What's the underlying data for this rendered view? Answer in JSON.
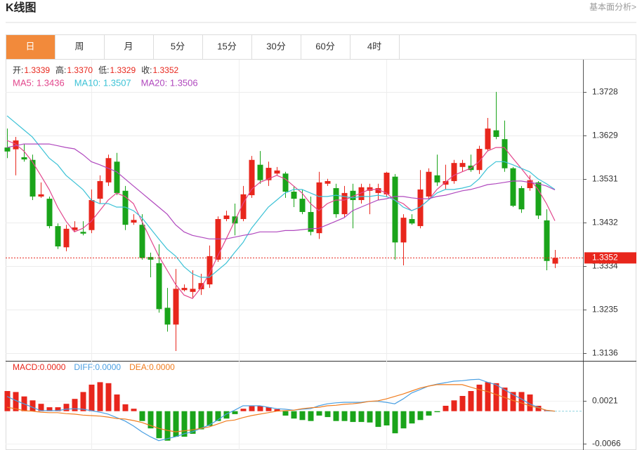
{
  "header": {
    "title": "K线图",
    "link": "基本面分析>"
  },
  "tabs": [
    "日",
    "周",
    "月",
    "5分",
    "15分",
    "30分",
    "60分",
    "4时"
  ],
  "active_tab": 0,
  "info": [
    {
      "label": "开:",
      "value": "1.3339"
    },
    {
      "label": "高:",
      "value": "1.3370"
    },
    {
      "label": "低:",
      "value": "1.3329"
    },
    {
      "label": "收:",
      "value": "1.3352"
    }
  ],
  "chart_data": [
    {
      "type": "candlestick",
      "up_color": "#e8261c",
      "down_color": "#1aa41a",
      "open": [
        1.3602,
        1.3598,
        1.358,
        1.3574,
        1.3491,
        1.3486,
        1.3424,
        1.3376,
        1.3415,
        1.3411,
        1.3415,
        1.3486,
        1.3523,
        1.357,
        1.3504,
        1.3432,
        1.3427,
        1.3354,
        1.334,
        1.3239,
        1.3201,
        1.3279,
        1.3275,
        1.3281,
        1.3292,
        1.3348,
        1.344,
        1.3446,
        1.344,
        1.3494,
        1.3563,
        1.3528,
        1.3543,
        1.3543,
        1.3502,
        1.3486,
        1.3456,
        1.3408,
        1.352,
        1.351,
        1.3451,
        1.3504,
        1.3483,
        1.3504,
        1.3499,
        1.3496,
        1.3536,
        1.3387,
        1.344,
        1.3424,
        1.3491,
        1.3539,
        1.3518,
        1.3526,
        1.3558,
        1.3561,
        1.3551,
        1.3598,
        1.3641,
        1.3621,
        1.3555,
        1.351,
        1.351,
        1.3523,
        1.3437,
        1.3339
      ],
      "high": [
        1.3645,
        1.3626,
        1.361,
        1.3586,
        1.3523,
        1.3491,
        1.343,
        1.3427,
        1.3435,
        1.3435,
        1.3507,
        1.3539,
        1.3586,
        1.359,
        1.3515,
        1.3451,
        1.3451,
        1.3364,
        1.3383,
        1.3284,
        1.3327,
        1.3292,
        1.3324,
        1.3316,
        1.338,
        1.3446,
        1.3459,
        1.3475,
        1.3515,
        1.3583,
        1.3594,
        1.357,
        1.3558,
        1.3547,
        1.3515,
        1.3507,
        1.3491,
        1.3547,
        1.3531,
        1.352,
        1.3515,
        1.352,
        1.352,
        1.352,
        1.352,
        1.3547,
        1.3542,
        1.3451,
        1.3451,
        1.3551,
        1.3555,
        1.3586,
        1.3563,
        1.3574,
        1.3574,
        1.3586,
        1.3606,
        1.3669,
        1.3728,
        1.3663,
        1.3558,
        1.3515,
        1.3539,
        1.3526,
        1.3462,
        1.337
      ],
      "low": [
        1.3578,
        1.3539,
        1.357,
        1.3483,
        1.3488,
        1.3419,
        1.3372,
        1.3367,
        1.3411,
        1.3403,
        1.3408,
        1.3475,
        1.3515,
        1.3494,
        1.3415,
        1.3427,
        1.3348,
        1.3308,
        1.3228,
        1.3185,
        1.3141,
        1.3276,
        1.326,
        1.3268,
        1.3284,
        1.3343,
        1.3435,
        1.3403,
        1.3435,
        1.3488,
        1.352,
        1.3515,
        1.3539,
        1.3488,
        1.3467,
        1.3451,
        1.3403,
        1.3395,
        1.3515,
        1.3443,
        1.3443,
        1.3419,
        1.3475,
        1.3451,
        1.3483,
        1.3491,
        1.3348,
        1.3335,
        1.3427,
        1.3419,
        1.3483,
        1.3515,
        1.3507,
        1.352,
        1.3547,
        1.3547,
        1.3542,
        1.3594,
        1.3621,
        1.3547,
        1.3467,
        1.3454,
        1.3504,
        1.344,
        1.3324,
        1.3329
      ],
      "close": [
        1.3593,
        1.3618,
        1.3575,
        1.3491,
        1.3496,
        1.3424,
        1.3378,
        1.3418,
        1.3421,
        1.3407,
        1.3483,
        1.3526,
        1.3578,
        1.3499,
        1.3427,
        1.3438,
        1.3352,
        1.3348,
        1.3236,
        1.3201,
        1.3282,
        1.3284,
        1.3282,
        1.3295,
        1.3356,
        1.344,
        1.3448,
        1.343,
        1.3496,
        1.3574,
        1.3528,
        1.3556,
        1.355,
        1.3502,
        1.3486,
        1.3456,
        1.3411,
        1.3523,
        1.3526,
        1.3451,
        1.3499,
        1.3483,
        1.3512,
        1.3512,
        1.351,
        1.3545,
        1.3387,
        1.3443,
        1.343,
        1.3507,
        1.3547,
        1.3523,
        1.3526,
        1.3567,
        1.3567,
        1.3551,
        1.3599,
        1.3645,
        1.3626,
        1.3555,
        1.347,
        1.3462,
        1.3528,
        1.3448,
        1.3345,
        1.3352
      ],
      "series": [
        {
          "label": "MA5: 1.3436",
          "color": "#e2468c",
          "values": [
            1.3618,
            1.361,
            1.3594,
            1.357,
            1.3539,
            1.3507,
            1.3467,
            1.3435,
            1.3411,
            1.3419,
            1.3435,
            1.3459,
            1.3483,
            1.3499,
            1.3491,
            1.3475,
            1.3435,
            1.3395,
            1.3356,
            1.3324,
            1.3292,
            1.3268,
            1.326,
            1.3284,
            1.3316,
            1.3356,
            1.3395,
            1.3435,
            1.3475,
            1.3507,
            1.3523,
            1.3531,
            1.3539,
            1.3531,
            1.3515,
            1.3499,
            1.3475,
            1.3459,
            1.3475,
            1.3483,
            1.3483,
            1.3491,
            1.3499,
            1.3507,
            1.3507,
            1.3499,
            1.3483,
            1.3475,
            1.3459,
            1.3467,
            1.3483,
            1.3507,
            1.3523,
            1.3539,
            1.3547,
            1.3555,
            1.357,
            1.3594,
            1.3602,
            1.3602,
            1.3578,
            1.3555,
            1.3531,
            1.3507,
            1.3475,
            1.3436
          ]
        },
        {
          "label": "MA10: 1.3507",
          "color": "#3cc2d6",
          "values": [
            1.3674,
            1.3658,
            1.3642,
            1.3626,
            1.3602,
            1.3578,
            1.3563,
            1.3539,
            1.3523,
            1.3507,
            1.3483,
            1.3475,
            1.3475,
            1.3467,
            1.3467,
            1.3459,
            1.3443,
            1.3419,
            1.3395,
            1.3372,
            1.3356,
            1.3332,
            1.3316,
            1.3308,
            1.3308,
            1.3324,
            1.334,
            1.3364,
            1.3387,
            1.3419,
            1.3443,
            1.3467,
            1.3483,
            1.3499,
            1.3507,
            1.3507,
            1.3499,
            1.3491,
            1.3491,
            1.3494,
            1.3491,
            1.3488,
            1.3491,
            1.3491,
            1.3494,
            1.3491,
            1.3483,
            1.3467,
            1.3459,
            1.3467,
            1.3483,
            1.3499,
            1.3507,
            1.3507,
            1.351,
            1.3515,
            1.3531,
            1.3555,
            1.357,
            1.357,
            1.3563,
            1.3555,
            1.3547,
            1.3531,
            1.352,
            1.3507
          ]
        },
        {
          "label": "MA20: 1.3506",
          "color": "#b048be",
          "values": [
            1.3602,
            1.3606,
            1.361,
            1.361,
            1.361,
            1.361,
            1.3606,
            1.3602,
            1.3599,
            1.3586,
            1.357,
            1.3563,
            1.3555,
            1.3547,
            1.3531,
            1.3515,
            1.3499,
            1.3483,
            1.3467,
            1.3451,
            1.3427,
            1.3411,
            1.3403,
            1.3399,
            1.3395,
            1.3395,
            1.3395,
            1.3399,
            1.3403,
            1.3406,
            1.3411,
            1.3411,
            1.3411,
            1.3414,
            1.3414,
            1.3416,
            1.3418,
            1.3419,
            1.3427,
            1.3435,
            1.3443,
            1.3459,
            1.3467,
            1.3475,
            1.3483,
            1.3486,
            1.3491,
            1.3491,
            1.3488,
            1.3486,
            1.3486,
            1.3491,
            1.3494,
            1.3499,
            1.3504,
            1.3507,
            1.3512,
            1.3518,
            1.352,
            1.3523,
            1.3526,
            1.3526,
            1.3523,
            1.352,
            1.3515,
            1.3506
          ]
        }
      ],
      "last_price": 1.3352,
      "ylim": [
        1.3122,
        1.3801
      ],
      "yticks": [
        1.3728,
        1.3629,
        1.3531,
        1.3432,
        1.3334,
        1.3235,
        1.3136
      ],
      "grid": true
    },
    {
      "type": "macd",
      "up_color": "#e8261c",
      "down_color": "#1aa41a",
      "histogram": {
        "label": "MACD:0.0000",
        "values": [
          0.0041,
          0.0039,
          0.003,
          0.0022,
          0.0015,
          0.0008,
          0.0008,
          0.0015,
          0.0025,
          0.0039,
          0.0054,
          0.0059,
          0.0057,
          0.0034,
          0.0014,
          0.0005,
          -0.002,
          -0.0035,
          -0.0055,
          -0.006,
          -0.0052,
          -0.0052,
          -0.0046,
          -0.0037,
          -0.003,
          -0.002,
          -0.0015,
          -0.0006,
          0.0005,
          0.0011,
          0.0011,
          0.0008,
          0.0004,
          -0.0009,
          -0.0015,
          -0.0018,
          -0.002,
          -0.0009,
          -0.0012,
          -0.002,
          -0.002,
          -0.0022,
          -0.0022,
          -0.0023,
          -0.0032,
          -0.0029,
          -0.0045,
          -0.0035,
          -0.0025,
          -0.0018,
          -0.0009,
          -0.0002,
          0.0011,
          0.0022,
          0.0031,
          0.0041,
          0.0054,
          0.0059,
          0.0057,
          0.0048,
          0.0039,
          0.0039,
          0.0034,
          0.0011,
          0.0002,
          0
        ]
      },
      "series": [
        {
          "label": "DIFF:0.0000",
          "color": "#4a9fe2",
          "values": [
            0.003,
            0.0022,
            0.0015,
            0.0008,
            0.0001,
            0.0001,
            0.0001,
            0.0004,
            0.0005,
            0.0004,
            0.0001,
            -0.0002,
            -0.0006,
            -0.0013,
            -0.002,
            -0.003,
            -0.0042,
            -0.0052,
            -0.006,
            -0.0056,
            -0.0052,
            -0.0046,
            -0.0042,
            -0.0035,
            -0.0028,
            -0.0018,
            -0.0006,
            0.0002,
            0.0011,
            0.0011,
            0.0011,
            0.0008,
            0.0005,
            0.0004,
            0.0002,
            0.0004,
            0.0005,
            0.0011,
            0.0015,
            0.0017,
            0.0018,
            0.0018,
            0.0018,
            0.002,
            0.002,
            0.0018,
            0.0015,
            0.0025,
            0.0037,
            0.0044,
            0.0051,
            0.0055,
            0.0058,
            0.0061,
            0.0062,
            0.0064,
            0.0065,
            0.0059,
            0.0054,
            0.0044,
            0.0034,
            0.0025,
            0.0015,
            0.0008,
            0.0001,
            0
          ]
        },
        {
          "label": "DEA:0.0000",
          "color": "#f07c1e",
          "values": [
            0.0008,
            0.0005,
            0.0001,
            0,
            -0.0002,
            -0.0003,
            -0.0003,
            -0.0005,
            -0.0006,
            -0.0008,
            -0.0009,
            -0.001,
            -0.0012,
            -0.0015,
            -0.0016,
            -0.0019,
            -0.0023,
            -0.0029,
            -0.0035,
            -0.0039,
            -0.0042,
            -0.004,
            -0.0038,
            -0.0035,
            -0.0032,
            -0.0026,
            -0.002,
            -0.0018,
            -0.0013,
            -0.0009,
            -0.0006,
            -0.0003,
            0,
            0.0001,
            0.0002,
            0.0005,
            0.0007,
            0.0008,
            0.0011,
            0.0012,
            0.0014,
            0.0015,
            0.0017,
            0.002,
            0.0021,
            0.0025,
            0.003,
            0.0035,
            0.0041,
            0.0047,
            0.0051,
            0.0054,
            0.0054,
            0.0054,
            0.0054,
            0.0049,
            0.0044,
            0.004,
            0.0034,
            0.0028,
            0.0022,
            0.0017,
            0.0011,
            0.0007,
            0.0002,
            0
          ]
        }
      ],
      "ylim": [
        -0.0079,
        0.0101
      ],
      "yticks": [
        0.0021,
        -0.0066
      ]
    }
  ]
}
